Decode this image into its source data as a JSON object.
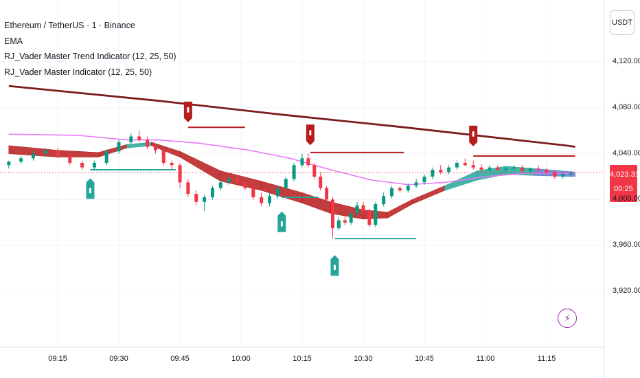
{
  "chart_data": {
    "type": "candlestick",
    "title": "Ethereum / TetherUS · 1 · Binance",
    "indicators": [
      "EMA",
      "RJ_Vader Master Trend Indicator (12, 25, 50)",
      "RJ_Vader Master Indicator (12, 25, 50)"
    ],
    "currency": "USDT",
    "last_price": "4,023.31",
    "countdown": "00:25",
    "y_range": [
      3900,
      4140
    ],
    "y_ticks": [
      "4,120.00",
      "4,080.00",
      "4,040.00",
      "4,000.00",
      "3,960.00",
      "3,920.00"
    ],
    "y_tick_values": [
      4120,
      4080,
      4040,
      4000,
      3960,
      3920
    ],
    "x_ticks": [
      "09:15",
      "09:30",
      "09:45",
      "10:00",
      "10:15",
      "10:30",
      "10:45",
      "11:00",
      "11:15"
    ],
    "x_tick_minutes": [
      555,
      570,
      585,
      600,
      615,
      630,
      645,
      660,
      675
    ],
    "x_range_minutes": [
      543,
      690
    ],
    "long_ema": {
      "color": "#7b1b1b",
      "points": [
        [
          543,
          4099
        ],
        [
          580,
          4086
        ],
        [
          610,
          4074
        ],
        [
          640,
          4063
        ],
        [
          665,
          4053
        ],
        [
          680,
          4047
        ],
        [
          682,
          4046
        ]
      ]
    },
    "pink_ema": {
      "color": "#e879f9",
      "points": [
        [
          543,
          4057
        ],
        [
          560,
          4056
        ],
        [
          572,
          4052
        ],
        [
          580,
          4052
        ],
        [
          590,
          4049
        ],
        [
          602,
          4043
        ],
        [
          612,
          4036
        ],
        [
          622,
          4026
        ],
        [
          632,
          4017
        ],
        [
          641,
          4013
        ],
        [
          650,
          4015
        ],
        [
          660,
          4020
        ],
        [
          670,
          4023
        ],
        [
          682,
          4023
        ]
      ]
    },
    "trend_band": {
      "colors": {
        "bearish": "#b71c1c",
        "bullish": "#26a69a",
        "neutral": "#5b7fd4"
      },
      "upper": [
        [
          543,
          4047
        ],
        [
          555,
          4043
        ],
        [
          565,
          4041
        ],
        [
          572,
          4048
        ],
        [
          578,
          4050
        ],
        [
          585,
          4042
        ],
        [
          595,
          4025
        ],
        [
          605,
          4016
        ],
        [
          615,
          4006
        ],
        [
          622,
          3998
        ],
        [
          630,
          3991
        ],
        [
          636,
          3989
        ],
        [
          642,
          4000
        ],
        [
          650,
          4012
        ],
        [
          658,
          4025
        ],
        [
          665,
          4029
        ],
        [
          672,
          4027
        ],
        [
          682,
          4024
        ]
      ],
      "lower": [
        [
          543,
          4040
        ],
        [
          555,
          4037
        ],
        [
          565,
          4037
        ],
        [
          572,
          4045
        ],
        [
          578,
          4047
        ],
        [
          585,
          4037
        ],
        [
          595,
          4016
        ],
        [
          605,
          4008
        ],
        [
          615,
          3997
        ],
        [
          622,
          3988
        ],
        [
          630,
          3983
        ],
        [
          636,
          3984
        ],
        [
          642,
          3996
        ],
        [
          650,
          4008
        ],
        [
          658,
          4017
        ],
        [
          665,
          4022
        ],
        [
          672,
          4021
        ],
        [
          682,
          4020
        ]
      ]
    },
    "candles": [
      [
        543,
        4030,
        4034,
        4027,
        4033
      ],
      [
        546,
        4033,
        4038,
        4031,
        4036
      ],
      [
        549,
        4036,
        4042,
        4034,
        4040
      ],
      [
        552,
        4040,
        4045,
        4038,
        4043
      ],
      [
        555,
        4043,
        4045,
        4036,
        4038
      ],
      [
        558,
        4038,
        4040,
        4030,
        4032
      ],
      [
        561,
        4032,
        4034,
        4026,
        4028
      ],
      [
        564,
        4028,
        4034,
        4026,
        4032
      ],
      [
        567,
        4032,
        4044,
        4030,
        4042
      ],
      [
        570,
        4042,
        4052,
        4040,
        4050
      ],
      [
        573,
        4050,
        4058,
        4048,
        4055
      ],
      [
        575,
        4055,
        4060,
        4050,
        4052
      ],
      [
        577,
        4052,
        4055,
        4044,
        4046
      ],
      [
        579,
        4046,
        4049,
        4040,
        4043
      ],
      [
        581,
        4043,
        4046,
        4030,
        4032
      ],
      [
        583,
        4032,
        4034,
        4026,
        4030
      ],
      [
        585,
        4030,
        4032,
        4010,
        4015
      ],
      [
        587,
        4015,
        4018,
        4002,
        4005
      ],
      [
        589,
        4005,
        4008,
        3995,
        3998
      ],
      [
        591,
        3998,
        4004,
        3990,
        4002
      ],
      [
        593,
        4002,
        4012,
        4000,
        4010
      ],
      [
        595,
        4010,
        4018,
        4008,
        4015
      ],
      [
        597,
        4015,
        4020,
        4013,
        4018
      ],
      [
        599,
        4018,
        4020,
        4013,
        4015
      ],
      [
        601,
        4015,
        4017,
        4008,
        4010
      ],
      [
        603,
        4010,
        4012,
        4000,
        4002
      ],
      [
        605,
        4002,
        4006,
        3994,
        3997
      ],
      [
        607,
        3997,
        4006,
        3994,
        4003
      ],
      [
        609,
        4003,
        4012,
        4001,
        4010
      ],
      [
        611,
        4010,
        4020,
        4008,
        4018
      ],
      [
        613,
        4018,
        4032,
        4016,
        4030
      ],
      [
        615,
        4030,
        4040,
        4028,
        4036
      ],
      [
        616.5,
        4036,
        4040,
        4028,
        4030
      ],
      [
        618,
        4030,
        4032,
        4018,
        4020
      ],
      [
        619.5,
        4020,
        4024,
        4008,
        4010
      ],
      [
        621,
        4010,
        4012,
        3998,
        4000
      ],
      [
        622.5,
        4000,
        4002,
        3966,
        3975
      ],
      [
        624,
        3975,
        3985,
        3973,
        3982
      ],
      [
        625.5,
        3982,
        3985,
        3978,
        3980
      ],
      [
        627,
        3980,
        3990,
        3978,
        3988
      ],
      [
        628.5,
        3988,
        3998,
        3986,
        3995
      ],
      [
        630,
        3995,
        3998,
        3988,
        3990
      ],
      [
        631.5,
        3990,
        3992,
        3976,
        3978
      ],
      [
        633,
        3978,
        3998,
        3976,
        3996
      ],
      [
        635,
        3996,
        4006,
        3994,
        4003
      ],
      [
        637,
        4003,
        4012,
        4001,
        4010
      ],
      [
        639,
        4010,
        4012,
        4006,
        4008
      ],
      [
        641,
        4008,
        4014,
        4006,
        4012
      ],
      [
        643,
        4012,
        4018,
        4010,
        4015
      ],
      [
        645,
        4015,
        4022,
        4013,
        4020
      ],
      [
        647,
        4020,
        4028,
        4018,
        4026
      ],
      [
        649,
        4026,
        4030,
        4022,
        4024
      ],
      [
        651,
        4024,
        4030,
        4022,
        4028
      ],
      [
        653,
        4028,
        4034,
        4026,
        4032
      ],
      [
        655,
        4032,
        4036,
        4029,
        4030
      ],
      [
        657,
        4030,
        4034,
        4026,
        4028
      ],
      [
        659,
        4028,
        4031,
        4024,
        4026
      ],
      [
        661,
        4026,
        4030,
        4024,
        4028
      ],
      [
        663,
        4028,
        4030,
        4025,
        4026
      ],
      [
        665,
        4026,
        4029,
        4024,
        4027
      ],
      [
        667,
        4027,
        4030,
        4025,
        4028
      ],
      [
        669,
        4028,
        4030,
        4024,
        4025
      ],
      [
        671,
        4025,
        4028,
        4023,
        4027
      ],
      [
        673,
        4027,
        4030,
        4024,
        4026
      ],
      [
        675,
        4026,
        4028,
        4022,
        4024
      ],
      [
        677,
        4024,
        4026,
        4018,
        4020
      ],
      [
        679,
        4020,
        4024,
        4018,
        4022
      ],
      [
        681,
        4022,
        4025,
        4020,
        4023
      ]
    ],
    "sell_signals": [
      {
        "time": 587,
        "price": 4065,
        "level": 4063,
        "level_end": 601
      },
      {
        "time": 617,
        "price": 4045,
        "level": 4041,
        "level_end": 640
      },
      {
        "time": 657,
        "price": 4044,
        "level": 4038,
        "level_end": 682
      }
    ],
    "buy_signals": [
      {
        "time": 563,
        "price": 4021,
        "level": 4026,
        "level_end": 584
      },
      {
        "time": 610,
        "price": 3992,
        "level": 4002,
        "level_end": 619
      },
      {
        "time": 623,
        "price": 3954,
        "level": 3966,
        "level_end": 643
      }
    ],
    "current_price_value": 4023.31
  }
}
